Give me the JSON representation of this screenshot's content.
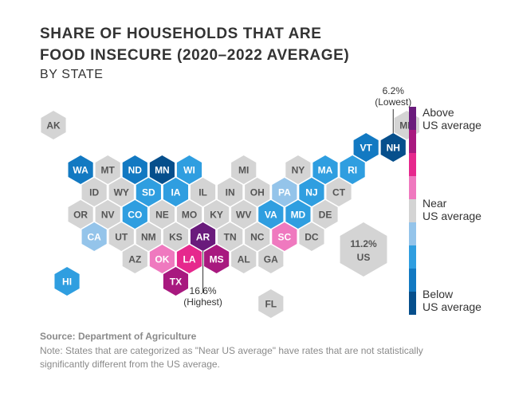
{
  "chart_data": {
    "type": "hexmap",
    "title_line1": "SHARE OF HOUSEHOLDS THAT ARE",
    "title_line2": "FOOD INSECURE (2020–2022 AVERAGE)",
    "subtitle": "BY STATE",
    "colors": {
      "above3": "#6a1b7c",
      "above2": "#a8197f",
      "above1": "#e6288d",
      "above0": "#ef79bf",
      "near": "#d4d4d4",
      "below0": "#94c4ea",
      "below1": "#2f9ee0",
      "below2": "#1279c2",
      "below3": "#064f8c"
    },
    "legend": {
      "above": [
        "Above",
        "US average"
      ],
      "near": [
        "Near",
        "US average"
      ],
      "below": [
        "Below",
        "US average"
      ],
      "ramp": [
        "above3",
        "above2",
        "above1",
        "above0",
        "near",
        "below0",
        "below1",
        "below2",
        "below3"
      ]
    },
    "states": [
      {
        "code": "AK",
        "row": 0,
        "col": 0,
        "cat": "near"
      },
      {
        "code": "ME",
        "row": 0,
        "col": 13,
        "cat": "near"
      },
      {
        "code": "VT",
        "row": 1,
        "col": 11.5,
        "cat": "below2"
      },
      {
        "code": "NH",
        "row": 1,
        "col": 12.5,
        "cat": "below3"
      },
      {
        "code": "WA",
        "row": 2,
        "col": 1,
        "cat": "below2"
      },
      {
        "code": "MT",
        "row": 2,
        "col": 2,
        "cat": "near"
      },
      {
        "code": "ND",
        "row": 2,
        "col": 3,
        "cat": "below2"
      },
      {
        "code": "MN",
        "row": 2,
        "col": 4,
        "cat": "below3"
      },
      {
        "code": "WI",
        "row": 2,
        "col": 5,
        "cat": "below1"
      },
      {
        "code": "MI",
        "row": 2,
        "col": 7,
        "cat": "near"
      },
      {
        "code": "NY",
        "row": 2,
        "col": 9,
        "cat": "near"
      },
      {
        "code": "MA",
        "row": 2,
        "col": 10,
        "cat": "below1"
      },
      {
        "code": "RI",
        "row": 2,
        "col": 11,
        "cat": "below1"
      },
      {
        "code": "ID",
        "row": 3,
        "col": 1.5,
        "cat": "near"
      },
      {
        "code": "WY",
        "row": 3,
        "col": 2.5,
        "cat": "near"
      },
      {
        "code": "SD",
        "row": 3,
        "col": 3.5,
        "cat": "below1"
      },
      {
        "code": "IA",
        "row": 3,
        "col": 4.5,
        "cat": "below1"
      },
      {
        "code": "IL",
        "row": 3,
        "col": 5.5,
        "cat": "near"
      },
      {
        "code": "IN",
        "row": 3,
        "col": 6.5,
        "cat": "near"
      },
      {
        "code": "OH",
        "row": 3,
        "col": 7.5,
        "cat": "near"
      },
      {
        "code": "PA",
        "row": 3,
        "col": 8.5,
        "cat": "below0"
      },
      {
        "code": "NJ",
        "row": 3,
        "col": 9.5,
        "cat": "below1"
      },
      {
        "code": "CT",
        "row": 3,
        "col": 10.5,
        "cat": "near"
      },
      {
        "code": "OR",
        "row": 4,
        "col": 1,
        "cat": "near"
      },
      {
        "code": "NV",
        "row": 4,
        "col": 2,
        "cat": "near"
      },
      {
        "code": "CO",
        "row": 4,
        "col": 3,
        "cat": "below1"
      },
      {
        "code": "NE",
        "row": 4,
        "col": 4,
        "cat": "near"
      },
      {
        "code": "MO",
        "row": 4,
        "col": 5,
        "cat": "near"
      },
      {
        "code": "KY",
        "row": 4,
        "col": 6,
        "cat": "near"
      },
      {
        "code": "WV",
        "row": 4,
        "col": 7,
        "cat": "near"
      },
      {
        "code": "VA",
        "row": 4,
        "col": 8,
        "cat": "below1"
      },
      {
        "code": "MD",
        "row": 4,
        "col": 9,
        "cat": "below1"
      },
      {
        "code": "DE",
        "row": 4,
        "col": 10,
        "cat": "near"
      },
      {
        "code": "CA",
        "row": 5,
        "col": 1.5,
        "cat": "below0"
      },
      {
        "code": "UT",
        "row": 5,
        "col": 2.5,
        "cat": "near"
      },
      {
        "code": "NM",
        "row": 5,
        "col": 3.5,
        "cat": "near"
      },
      {
        "code": "KS",
        "row": 5,
        "col": 4.5,
        "cat": "near"
      },
      {
        "code": "AR",
        "row": 5,
        "col": 5.5,
        "cat": "above3"
      },
      {
        "code": "TN",
        "row": 5,
        "col": 6.5,
        "cat": "near"
      },
      {
        "code": "NC",
        "row": 5,
        "col": 7.5,
        "cat": "near"
      },
      {
        "code": "SC",
        "row": 5,
        "col": 8.5,
        "cat": "above0"
      },
      {
        "code": "DC",
        "row": 5,
        "col": 9.5,
        "cat": "near"
      },
      {
        "code": "AZ",
        "row": 6,
        "col": 3,
        "cat": "near"
      },
      {
        "code": "OK",
        "row": 6,
        "col": 4,
        "cat": "above0"
      },
      {
        "code": "LA",
        "row": 6,
        "col": 5,
        "cat": "above1"
      },
      {
        "code": "MS",
        "row": 6,
        "col": 6,
        "cat": "above2"
      },
      {
        "code": "AL",
        "row": 6,
        "col": 7,
        "cat": "near"
      },
      {
        "code": "GA",
        "row": 6,
        "col": 8,
        "cat": "near"
      },
      {
        "code": "HI",
        "row": 7,
        "col": 0.5,
        "cat": "below1"
      },
      {
        "code": "TX",
        "row": 7,
        "col": 4.5,
        "cat": "above2"
      },
      {
        "code": "FL",
        "row": 8,
        "col": 8,
        "cat": "near"
      }
    ],
    "us_value": "11.2%",
    "us_label": "US",
    "lowest": {
      "state": "NH",
      "value": "6.2%",
      "label": "(Lowest)"
    },
    "highest": {
      "state": "AR",
      "value": "16.6%",
      "label": "(Highest)"
    }
  },
  "footer": {
    "source": "Source: Department of Agriculture",
    "note": "Note: States that are categorized as \"Near US average\" have rates that are not statistically significantly different from the US average."
  }
}
